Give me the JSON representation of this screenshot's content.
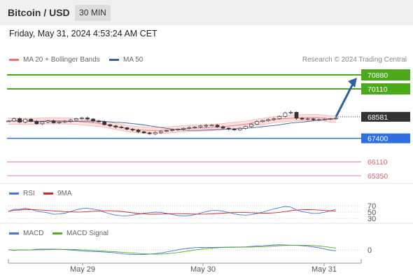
{
  "header": {
    "title": "Bitcoin / USD",
    "timeframe": "30 MIN"
  },
  "date_label": "Friday, May 31, 2024 4:53:24 AM CET",
  "credit": "Research © 2024 Trading Central",
  "colors": {
    "bollinger": "#f07070",
    "band_fill": "#fde0e0",
    "ma50": "#3a5fa0",
    "resistance": "#4caa1a",
    "support": "#2f6fe0",
    "target_low": "#e06070",
    "price_tag": "#333333",
    "rsi": "#4477dd",
    "rsi_ma": "#dd2222",
    "macd": "#4477dd",
    "macd_signal": "#55aa22",
    "arrow": "#2f5f9f"
  },
  "price_panel": {
    "legend": [
      {
        "label": "MA 20 + Bollinger Bands",
        "color": "#f07070"
      },
      {
        "label": "MA 50",
        "color": "#3a5fa0"
      }
    ],
    "levels": [
      {
        "value": 70880,
        "label": "70880",
        "kind": "resistance"
      },
      {
        "value": 70110,
        "label": "70110",
        "kind": "resistance"
      },
      {
        "value": 68581,
        "label": "68581",
        "kind": "current"
      },
      {
        "value": 67400,
        "label": "67400",
        "kind": "support"
      },
      {
        "value": 66110,
        "label": "66110",
        "kind": "target"
      },
      {
        "value": 65350,
        "label": "65350",
        "kind": "target"
      }
    ]
  },
  "rsi_panel": {
    "legend": [
      {
        "label": "RSI",
        "color": "#4477dd"
      },
      {
        "label": "9MA",
        "color": "#dd2222"
      }
    ],
    "ticks": [
      "70",
      "50",
      "30"
    ]
  },
  "macd_panel": {
    "legend": [
      {
        "label": "MACD",
        "color": "#4477dd"
      },
      {
        "label": "MACD Signal",
        "color": "#55aa22"
      }
    ],
    "ticks": [
      "0"
    ]
  },
  "x_axis": {
    "labels": [
      "May 29",
      "May 30",
      "May 31"
    ]
  },
  "chart_data": {
    "type": "line",
    "title": "Bitcoin / USD",
    "timeframe": "30 MIN",
    "x": [
      "May 29",
      "May 30",
      "May 31"
    ],
    "price_series": {
      "name": "Bitcoin / USD",
      "approx_values": [
        68350,
        68480,
        68290,
        68450,
        68330,
        68200,
        68300,
        68360,
        68250,
        68300,
        68340,
        68400,
        68480,
        68520,
        68460,
        68350,
        68300,
        68150,
        68080,
        68020,
        67980,
        67900,
        67850,
        67760,
        67700,
        67650,
        67720,
        67780,
        67820,
        67860,
        67900,
        67950,
        67990,
        68020,
        68080,
        68110,
        68120,
        68030,
        67960,
        67900,
        67860,
        67950,
        68050,
        68180,
        68320,
        68380,
        68430,
        68480,
        68600,
        68800,
        68830,
        68500,
        68450,
        68470,
        68420,
        68430,
        68450,
        68480,
        68510
      ]
    },
    "horizontal_levels": [
      70880,
      70110,
      68581,
      67400,
      66110,
      65350
    ],
    "current_price": 68581,
    "rsi_ticks": [
      70,
      50,
      30
    ],
    "macd_ticks": [
      0
    ],
    "legend": [
      "MA 20 + Bollinger Bands",
      "MA 50",
      "RSI",
      "9MA",
      "MACD",
      "MACD Signal"
    ]
  }
}
